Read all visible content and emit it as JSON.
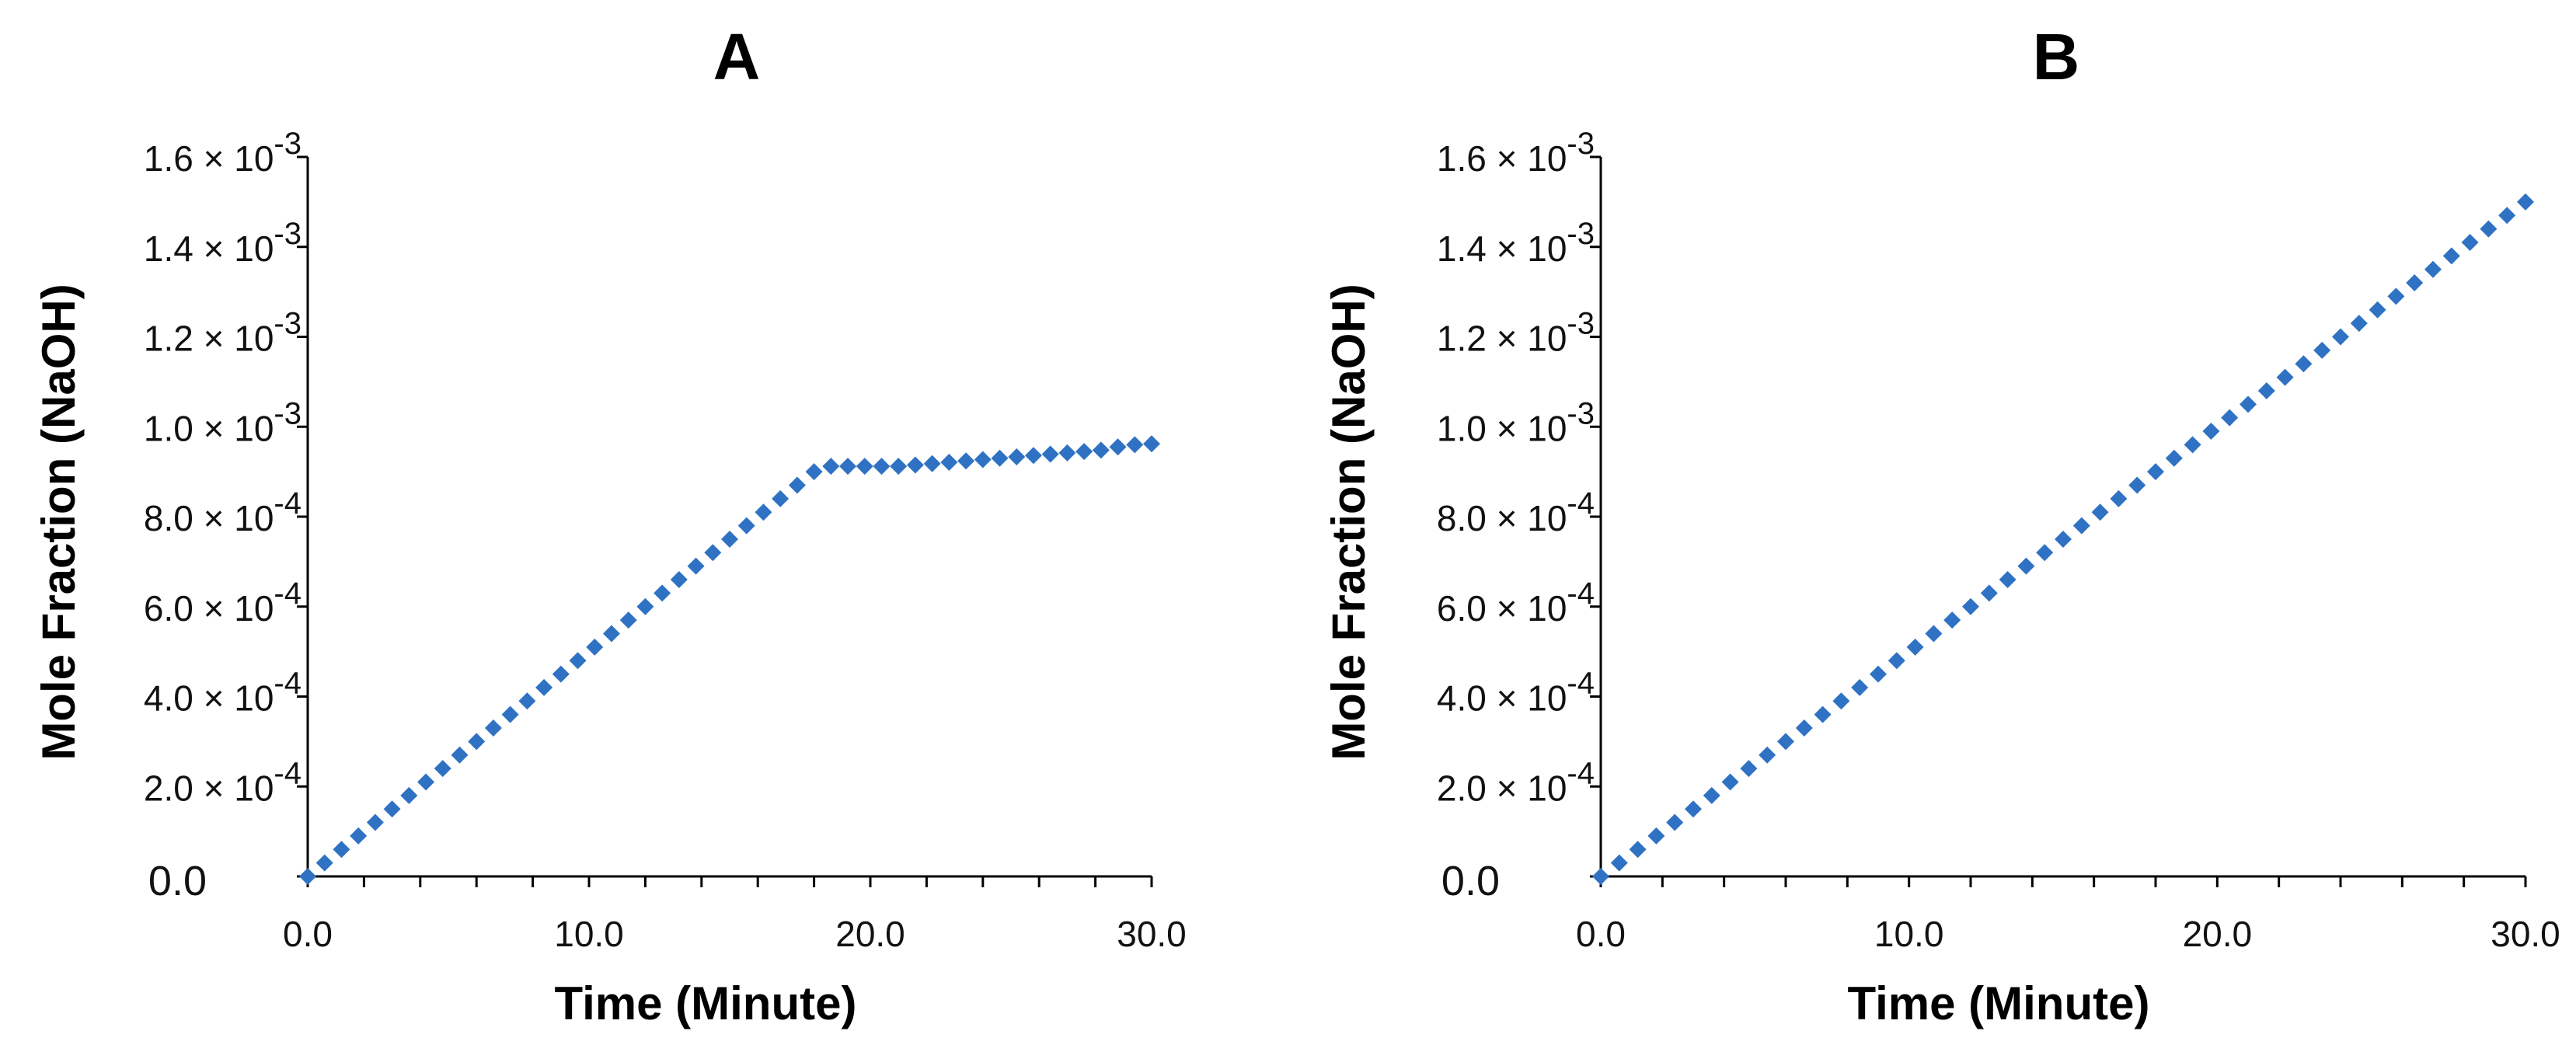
{
  "chart_data": [
    {
      "type": "scatter",
      "title": "A",
      "xlabel": "Time (Minute)",
      "ylabel": "Mole Fraction (NaOH)",
      "xlim": [
        0,
        30
      ],
      "ylim": [
        0,
        0.0016
      ],
      "xticks": [
        {
          "value": 0,
          "label": "0.0"
        },
        {
          "value": 10,
          "label": "10.0"
        },
        {
          "value": 20,
          "label": "20.0"
        },
        {
          "value": 30,
          "label": "30.0"
        }
      ],
      "yticks": [
        {
          "value": 0,
          "label": "0.0"
        },
        {
          "value": 0.0002,
          "mantissa": "2.0",
          "times": "×",
          "base": "10",
          "exponent": "-4"
        },
        {
          "value": 0.0004,
          "mantissa": "4.0",
          "times": "×",
          "base": "10",
          "exponent": "-4"
        },
        {
          "value": 0.0006,
          "mantissa": "6.0",
          "times": "×",
          "base": "10",
          "exponent": "-4"
        },
        {
          "value": 0.0008,
          "mantissa": "8.0",
          "times": "×",
          "base": "10",
          "exponent": "-4"
        },
        {
          "value": 0.001,
          "mantissa": "1.0",
          "times": "×",
          "base": "10",
          "exponent": "-3"
        },
        {
          "value": 0.0012,
          "mantissa": "1.2",
          "times": "×",
          "base": "10",
          "exponent": "-3"
        },
        {
          "value": 0.0014,
          "mantissa": "1.4",
          "times": "×",
          "base": "10",
          "exponent": "-3"
        },
        {
          "value": 0.0016,
          "mantissa": "1.6",
          "times": "×",
          "base": "10",
          "exponent": "-3"
        }
      ],
      "color": "#2f72c4",
      "x": [
        0,
        0.6,
        1.2,
        1.8,
        2.4,
        3.0,
        3.6,
        4.2,
        4.8,
        5.4,
        6.0,
        6.6,
        7.2,
        7.8,
        8.4,
        9.0,
        9.6,
        10.2,
        10.8,
        11.4,
        12.0,
        12.6,
        13.2,
        13.8,
        14.4,
        15.0,
        15.6,
        16.2,
        16.8,
        17.4,
        18.0,
        18.6,
        19.2,
        19.8,
        20.4,
        21.0,
        21.6,
        22.2,
        22.8,
        23.4,
        24.0,
        24.6,
        25.2,
        25.8,
        26.4,
        27.0,
        27.6,
        28.2,
        28.8,
        29.4,
        30.0
      ],
      "y": [
        0,
        3e-05,
        6e-05,
        9e-05,
        0.00012,
        0.00015,
        0.00018,
        0.00021,
        0.00024,
        0.00027,
        0.0003,
        0.00033,
        0.00036,
        0.00039,
        0.00042,
        0.00045,
        0.00048,
        0.00051,
        0.00054,
        0.00057,
        0.0006,
        0.00063,
        0.00066,
        0.00069,
        0.00072,
        0.00075,
        0.00078,
        0.00081,
        0.00084,
        0.00087,
        0.0009,
        0.000912,
        0.000912,
        0.000912,
        0.000912,
        0.000912,
        0.000915,
        0.000918,
        0.000921,
        0.000924,
        0.000927,
        0.00093,
        0.000933,
        0.000936,
        0.000939,
        0.000942,
        0.000945,
        0.000948,
        0.000955,
        0.00096,
        0.000962
      ]
    },
    {
      "type": "scatter",
      "title": "B",
      "xlabel": "Time (Minute)",
      "ylabel": "Mole Fraction (NaOH)",
      "xlim": [
        0,
        30
      ],
      "ylim": [
        0,
        0.0016
      ],
      "xticks": [
        {
          "value": 0,
          "label": "0.0"
        },
        {
          "value": 10,
          "label": "10.0"
        },
        {
          "value": 20,
          "label": "20.0"
        },
        {
          "value": 30,
          "label": "30.0"
        }
      ],
      "yticks": [
        {
          "value": 0,
          "label": "0.0"
        },
        {
          "value": 0.0002,
          "mantissa": "2.0",
          "times": "×",
          "base": "10",
          "exponent": "-4"
        },
        {
          "value": 0.0004,
          "mantissa": "4.0",
          "times": "×",
          "base": "10",
          "exponent": "-4"
        },
        {
          "value": 0.0006,
          "mantissa": "6.0",
          "times": "×",
          "base": "10",
          "exponent": "-4"
        },
        {
          "value": 0.0008,
          "mantissa": "8.0",
          "times": "×",
          "base": "10",
          "exponent": "-4"
        },
        {
          "value": 0.001,
          "mantissa": "1.0",
          "times": "×",
          "base": "10",
          "exponent": "-3"
        },
        {
          "value": 0.0012,
          "mantissa": "1.2",
          "times": "×",
          "base": "10",
          "exponent": "-3"
        },
        {
          "value": 0.0014,
          "mantissa": "1.4",
          "times": "×",
          "base": "10",
          "exponent": "-3"
        },
        {
          "value": 0.0016,
          "mantissa": "1.6",
          "times": "×",
          "base": "10",
          "exponent": "-3"
        }
      ],
      "color": "#2f72c4",
      "x": [
        0,
        0.6,
        1.2,
        1.8,
        2.4,
        3.0,
        3.6,
        4.2,
        4.8,
        5.4,
        6.0,
        6.6,
        7.2,
        7.8,
        8.4,
        9.0,
        9.6,
        10.2,
        10.8,
        11.4,
        12.0,
        12.6,
        13.2,
        13.8,
        14.4,
        15.0,
        15.6,
        16.2,
        16.8,
        17.4,
        18.0,
        18.6,
        19.2,
        19.8,
        20.4,
        21.0,
        21.6,
        22.2,
        22.8,
        23.4,
        24.0,
        24.6,
        25.2,
        25.8,
        26.4,
        27.0,
        27.6,
        28.2,
        28.8,
        29.4,
        30.0
      ],
      "y": [
        0,
        3e-05,
        6e-05,
        9e-05,
        0.00012,
        0.00015,
        0.00018,
        0.00021,
        0.00024,
        0.00027,
        0.0003,
        0.00033,
        0.00036,
        0.00039,
        0.00042,
        0.00045,
        0.00048,
        0.00051,
        0.00054,
        0.00057,
        0.0006,
        0.00063,
        0.00066,
        0.00069,
        0.00072,
        0.00075,
        0.00078,
        0.00081,
        0.00084,
        0.00087,
        0.0009,
        0.00093,
        0.00096,
        0.00099,
        0.00102,
        0.00105,
        0.00108,
        0.00111,
        0.00114,
        0.00117,
        0.0012,
        0.00123,
        0.00126,
        0.00129,
        0.00132,
        0.00135,
        0.00138,
        0.00141,
        0.00144,
        0.00147,
        0.0015
      ]
    }
  ]
}
